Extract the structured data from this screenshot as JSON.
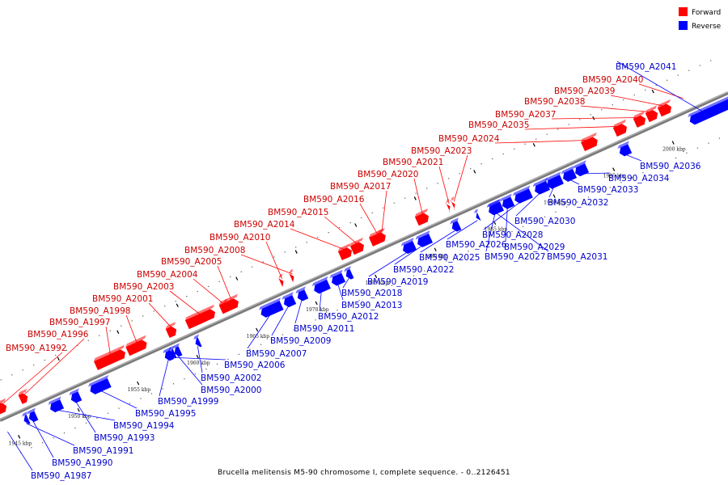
{
  "legend": [
    {
      "label": "Forward",
      "color": "#ff0000"
    },
    {
      "label": "Reverse",
      "color": "#0000ff"
    }
  ],
  "caption": "Brucella melitensis M5-90 chromosome I, complete sequence. - 0..2126451",
  "colors": {
    "forward": "#ff0000",
    "reverse": "#0000ff",
    "backbone": "#888888",
    "label_forward": "#cc0000",
    "label_reverse": "#0000cc"
  },
  "ticks": [
    "1945 kbp",
    "1950 kbp",
    "1955 kbp",
    "1960 kbp",
    "1965 kbp",
    "1970 kbp",
    "1975 kbp",
    "1980 kbp",
    "1985 kbp",
    "1990 kbp",
    "1995 kbp",
    "2000 kbp"
  ],
  "forward_genes": [
    "BM590_A1992",
    "BM590_A1996",
    "BM590_A1997",
    "BM590_A1998",
    "BM590_A2001",
    "BM590_A2003",
    "BM590_A2004",
    "BM590_A2005",
    "BM590_A2008",
    "BM590_A2010",
    "BM590_A2014",
    "BM590_A2015",
    "BM590_A2016",
    "BM590_A2017",
    "BM590_A2020",
    "BM590_A2021",
    "BM590_A2023",
    "BM590_A2024",
    "BM590_A2035",
    "BM590_A2037",
    "BM590_A2038",
    "BM590_A2039",
    "BM590_A2040"
  ],
  "reverse_genes": [
    "BM590_A2041",
    "BM590_A2036",
    "BM590_A2034",
    "BM590_A2033",
    "BM590_A2032",
    "BM590_A2030",
    "BM590_A2028",
    "BM590_A2029",
    "BM590_A2031",
    "BM590_A2026",
    "BM590_A2027",
    "BM590_A2025",
    "BM590_A2022",
    "BM590_A2019",
    "BM590_A2018",
    "BM590_A2013",
    "BM590_A2012",
    "BM590_A2011",
    "BM590_A2009",
    "BM590_A2007",
    "BM590_A2006",
    "BM590_A2002",
    "BM590_A2000",
    "BM590_A1999",
    "BM590_A1995",
    "BM590_A1994",
    "BM590_A1993",
    "BM590_A1991",
    "BM590_A1990",
    "BM590_A1987"
  ]
}
